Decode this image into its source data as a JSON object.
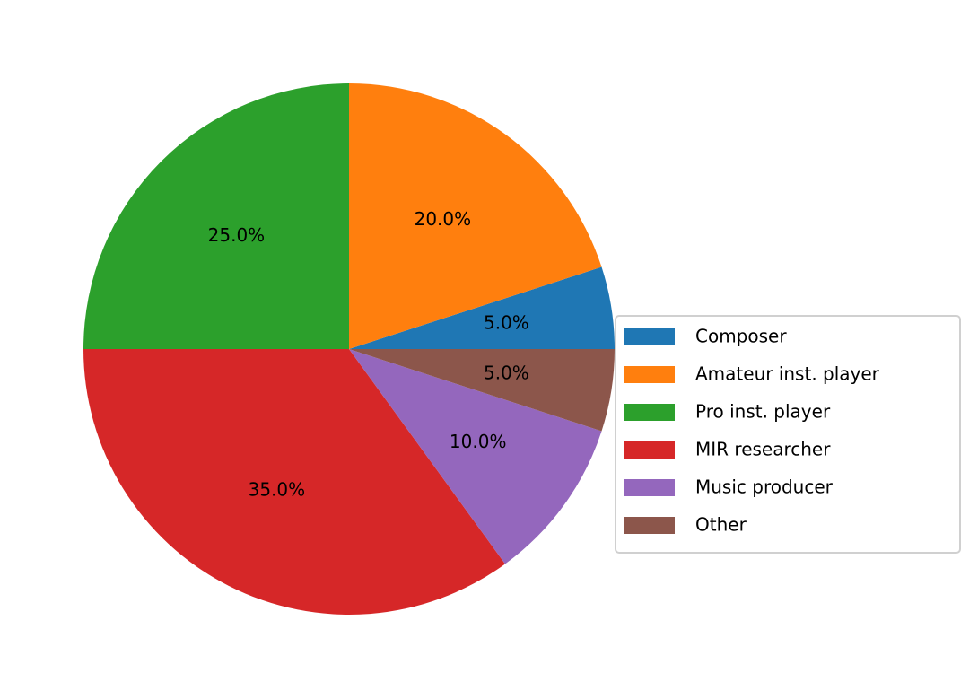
{
  "chart_data": {
    "type": "pie",
    "categories": [
      "Composer",
      "Amateur inst. player",
      "Pro inst. player",
      "MIR researcher",
      "Music producer",
      "Other"
    ],
    "values": [
      5,
      20,
      25,
      35,
      10,
      5
    ],
    "value_labels": [
      "5.0%",
      "20.0%",
      "25.0%",
      "35.0%",
      "10.0%",
      "5.0%"
    ],
    "colors": [
      "#1f77b4",
      "#ff7f0e",
      "#2ca02c",
      "#d62728",
      "#9467bd",
      "#8c564b"
    ],
    "legend": "right"
  }
}
